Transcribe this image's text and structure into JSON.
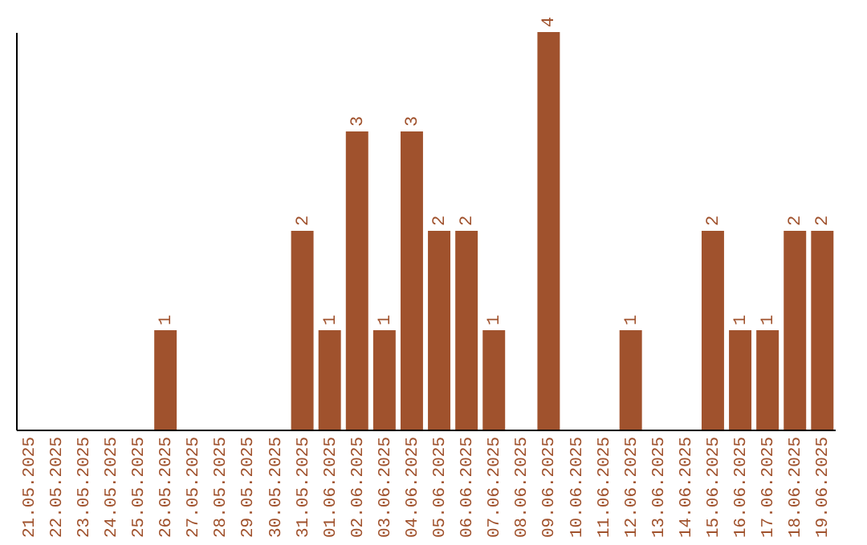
{
  "chart_data": {
    "type": "bar",
    "categories": [
      "21.05.2025",
      "22.05.2025",
      "23.05.2025",
      "24.05.2025",
      "25.05.2025",
      "26.05.2025",
      "27.05.2025",
      "28.05.2025",
      "29.05.2025",
      "30.05.2025",
      "31.05.2025",
      "01.06.2025",
      "02.06.2025",
      "03.06.2025",
      "04.06.2025",
      "05.06.2025",
      "06.06.2025",
      "07.06.2025",
      "08.06.2025",
      "09.06.2025",
      "10.06.2025",
      "11.06.2025",
      "12.06.2025",
      "13.06.2025",
      "14.06.2025",
      "15.06.2025",
      "16.06.2025",
      "17.06.2025",
      "18.06.2025",
      "19.06.2025"
    ],
    "values": [
      0,
      0,
      0,
      0,
      0,
      1,
      0,
      0,
      0,
      0,
      2,
      1,
      3,
      1,
      3,
      2,
      2,
      1,
      0,
      4,
      0,
      0,
      1,
      0,
      0,
      2,
      1,
      1,
      2,
      2
    ],
    "value_labels": [
      null,
      null,
      null,
      null,
      null,
      "1",
      null,
      null,
      null,
      null,
      "2",
      "1",
      "3",
      "1",
      "3",
      "2",
      "2",
      "1",
      null,
      "4",
      null,
      null,
      "1",
      null,
      null,
      "2",
      "1",
      "1",
      "2",
      "2"
    ],
    "color": "#a0522d",
    "tick_labels": "x",
    "grid": false
  }
}
